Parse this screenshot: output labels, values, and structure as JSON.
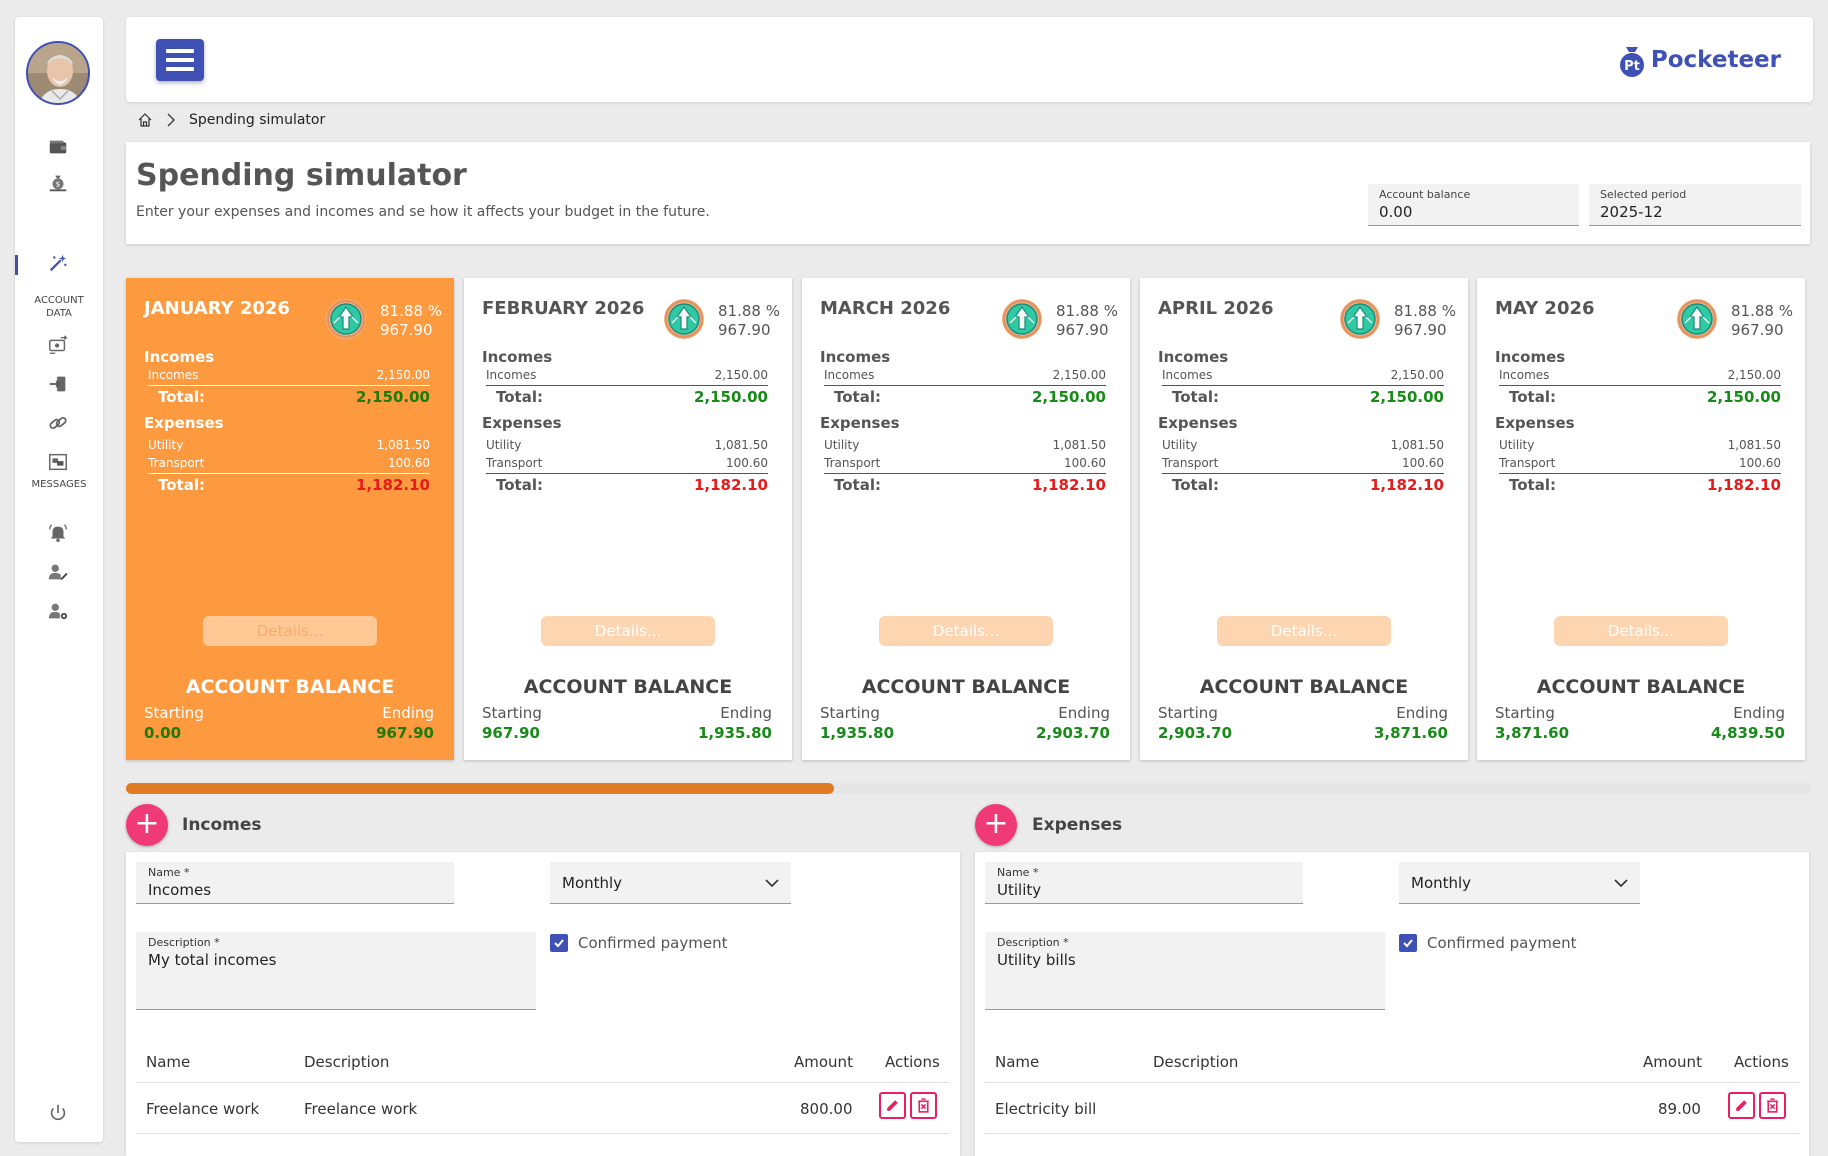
{
  "app": {
    "brand": "Pocketeer"
  },
  "sidebar": {
    "account_data_label_1": "ACCOUNT",
    "account_data_label_2": "DATA",
    "messages_label": "MESSAGES",
    "icons": [
      "wallet-icon",
      "money-bag-icon",
      "magic-wand-icon",
      "transfer-icon",
      "import-icon",
      "link-icon",
      "gallery-icon",
      "bell-icon",
      "user-edit-icon",
      "user-settings-icon",
      "power-icon"
    ]
  },
  "breadcrumb": {
    "current": "Spending simulator"
  },
  "page": {
    "title": "Spending simulator",
    "subtitle": "Enter your expenses and incomes and se how it affects your budget in the future.",
    "account_balance_label": "Account balance",
    "account_balance_value": "0.00",
    "selected_period_label": "Selected period",
    "selected_period_value": "2025-12"
  },
  "cards": [
    {
      "month": "JANUARY 2026",
      "pct": "81.88 %",
      "amount": "967.90",
      "incomes_h": "Incomes",
      "income_name": "Incomes",
      "income_val": "2,150.00",
      "total_lbl": "Total:",
      "income_total": "2,150.00",
      "expenses_h": "Expenses",
      "exp1_name": "Utility",
      "exp1_val": "1,081.50",
      "exp2_name": "Transport",
      "exp2_val": "100.60",
      "exp_total": "1,182.10",
      "details": "Details...",
      "ab": "ACCOUNT BALANCE",
      "starting_lbl": "Starting",
      "ending_lbl": "Ending",
      "starting": "0.00",
      "ending": "967.90"
    },
    {
      "month": "FEBRUARY 2026",
      "pct": "81.88 %",
      "amount": "967.90",
      "incomes_h": "Incomes",
      "income_name": "Incomes",
      "income_val": "2,150.00",
      "total_lbl": "Total:",
      "income_total": "2,150.00",
      "expenses_h": "Expenses",
      "exp1_name": "Utility",
      "exp1_val": "1,081.50",
      "exp2_name": "Transport",
      "exp2_val": "100.60",
      "exp_total": "1,182.10",
      "details": "Details...",
      "ab": "ACCOUNT BALANCE",
      "starting_lbl": "Starting",
      "ending_lbl": "Ending",
      "starting": "967.90",
      "ending": "1,935.80"
    },
    {
      "month": "MARCH 2026",
      "pct": "81.88 %",
      "amount": "967.90",
      "incomes_h": "Incomes",
      "income_name": "Incomes",
      "income_val": "2,150.00",
      "total_lbl": "Total:",
      "income_total": "2,150.00",
      "expenses_h": "Expenses",
      "exp1_name": "Utility",
      "exp1_val": "1,081.50",
      "exp2_name": "Transport",
      "exp2_val": "100.60",
      "exp_total": "1,182.10",
      "details": "Details...",
      "ab": "ACCOUNT BALANCE",
      "starting_lbl": "Starting",
      "ending_lbl": "Ending",
      "starting": "1,935.80",
      "ending": "2,903.70"
    },
    {
      "month": "APRIL 2026",
      "pct": "81.88 %",
      "amount": "967.90",
      "incomes_h": "Incomes",
      "income_name": "Incomes",
      "income_val": "2,150.00",
      "total_lbl": "Total:",
      "income_total": "2,150.00",
      "expenses_h": "Expenses",
      "exp1_name": "Utility",
      "exp1_val": "1,081.50",
      "exp2_name": "Transport",
      "exp2_val": "100.60",
      "exp_total": "1,182.10",
      "details": "Details...",
      "ab": "ACCOUNT BALANCE",
      "starting_lbl": "Starting",
      "ending_lbl": "Ending",
      "starting": "2,903.70",
      "ending": "3,871.60"
    },
    {
      "month": "MAY 2026",
      "pct": "81.88 %",
      "amount": "967.90",
      "incomes_h": "Incomes",
      "income_name": "Incomes",
      "income_val": "2,150.00",
      "total_lbl": "Total:",
      "income_total": "2,150.00",
      "expenses_h": "Expenses",
      "exp1_name": "Utility",
      "exp1_val": "1,081.50",
      "exp2_name": "Transport",
      "exp2_val": "100.60",
      "exp_total": "1,182.10",
      "details": "Details...",
      "ab": "ACCOUNT BALANCE",
      "starting_lbl": "Starting",
      "ending_lbl": "Ending",
      "starting": "3,871.60",
      "ending": "4,839.50"
    }
  ],
  "scroll_progress": 0.42,
  "incomes": {
    "title": "Incomes",
    "name_label": "Name *",
    "name_value": "Incomes",
    "frequency": "Monthly",
    "desc_label": "Description *",
    "desc_value": "My total incomes",
    "confirmed_label": "Confirmed payment",
    "cols": {
      "name": "Name",
      "description": "Description",
      "amount": "Amount",
      "actions": "Actions"
    },
    "rows": [
      {
        "name": "Freelance work",
        "description": "Freelance work",
        "amount": "800.00"
      }
    ]
  },
  "expenses": {
    "title": "Expenses",
    "name_label": "Name *",
    "name_value": "Utility",
    "frequency": "Monthly",
    "desc_label": "Description *",
    "desc_value": "Utility bills",
    "confirmed_label": "Confirmed payment",
    "cols": {
      "name": "Name",
      "description": "Description",
      "amount": "Amount",
      "actions": "Actions"
    },
    "rows": [
      {
        "name": "Electricity bill",
        "description": "",
        "amount": "89.00"
      }
    ]
  },
  "colors": {
    "accent": "#3f51b5",
    "active_card": "#fd9a3f",
    "positive": "#178a17",
    "negative": "#e51c1c",
    "pink": "#f03a78"
  }
}
